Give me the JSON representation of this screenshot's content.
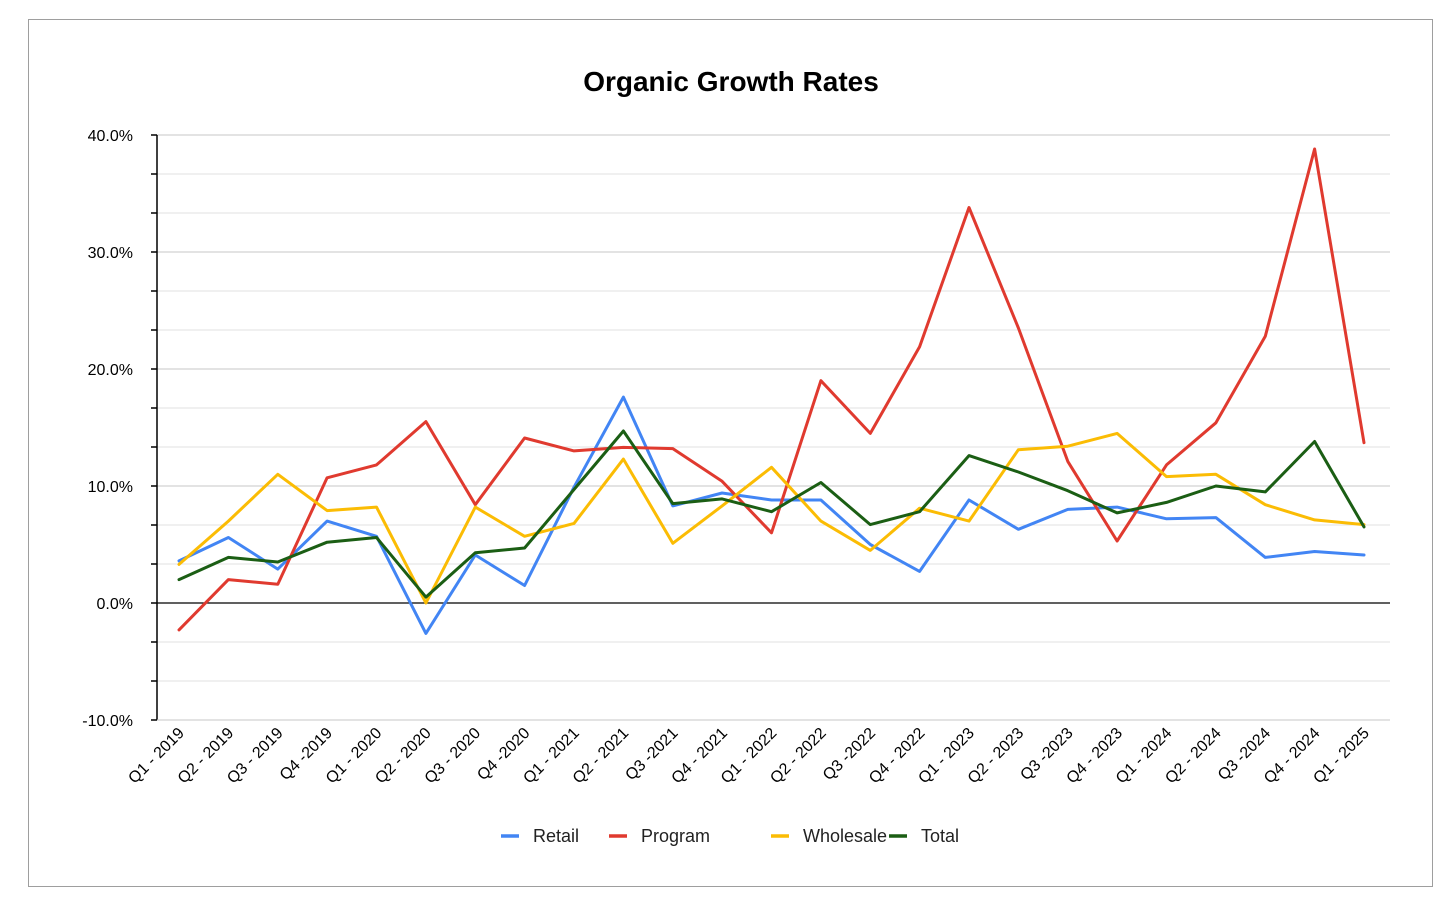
{
  "chart_data": {
    "type": "line",
    "title": "Organic Growth Rates",
    "xlabel": "",
    "ylabel": "",
    "ylim": [
      -10,
      40
    ],
    "y_ticks": [
      -10,
      0,
      10,
      20,
      30,
      40
    ],
    "y_tick_labels": [
      "-10.0%",
      "0.0%",
      "10.0%",
      "20.0%",
      "30.0%",
      "40.0%"
    ],
    "grid": true,
    "legend_position": "bottom",
    "categories": [
      "Q1 - 2019",
      "Q2 - 2019",
      "Q3 - 2019",
      "Q4 -2019",
      "Q1 - 2020",
      "Q2 - 2020",
      "Q3 - 2020",
      "Q4 -2020",
      "Q1 - 2021",
      "Q2 - 2021",
      "Q3 -2021",
      "Q4 - 2021",
      "Q1 - 2022",
      "Q2 - 2022",
      "Q3 -2022",
      "Q4 - 2022",
      "Q1 - 2023",
      "Q2 - 2023",
      "Q3 -2023",
      "Q4 - 2023",
      "Q1 - 2024",
      "Q2 - 2024",
      "Q3 -2024",
      "Q4 - 2024",
      "Q1 - 2025"
    ],
    "series": [
      {
        "name": "Retail",
        "color": "#4285f4",
        "values": [
          3.6,
          5.6,
          2.9,
          7.0,
          5.7,
          -2.6,
          4.1,
          1.5,
          9.9,
          17.6,
          8.3,
          9.4,
          8.8,
          8.8,
          5.0,
          2.7,
          8.8,
          6.3,
          8.0,
          8.2,
          7.2,
          7.3,
          3.9,
          4.4,
          4.1
        ]
      },
      {
        "name": "Program",
        "color": "#e03a2f",
        "values": [
          -2.3,
          2.0,
          1.6,
          10.7,
          11.8,
          15.5,
          8.4,
          14.1,
          13.0,
          13.3,
          13.2,
          10.4,
          6.0,
          19.0,
          14.5,
          21.9,
          33.8,
          23.5,
          12.1,
          5.3,
          11.8,
          15.4,
          22.8,
          38.8,
          13.7
        ]
      },
      {
        "name": "Wholesale",
        "color": "#fbbc04",
        "values": [
          3.3,
          7.0,
          11.0,
          7.9,
          8.2,
          0.0,
          8.2,
          5.7,
          6.8,
          12.3,
          5.1,
          8.3,
          11.6,
          7.0,
          4.5,
          8.1,
          7.0,
          13.1,
          13.4,
          14.5,
          10.8,
          11.0,
          8.4,
          7.1,
          6.7
        ]
      },
      {
        "name": "Total",
        "color": "#1b5e14",
        "values": [
          2.0,
          3.9,
          3.5,
          5.2,
          5.6,
          0.5,
          4.3,
          4.7,
          9.7,
          14.7,
          8.5,
          8.9,
          7.8,
          10.3,
          6.7,
          7.8,
          12.6,
          11.2,
          9.6,
          7.7,
          8.6,
          10.0,
          9.5,
          13.8,
          6.5
        ]
      }
    ]
  }
}
